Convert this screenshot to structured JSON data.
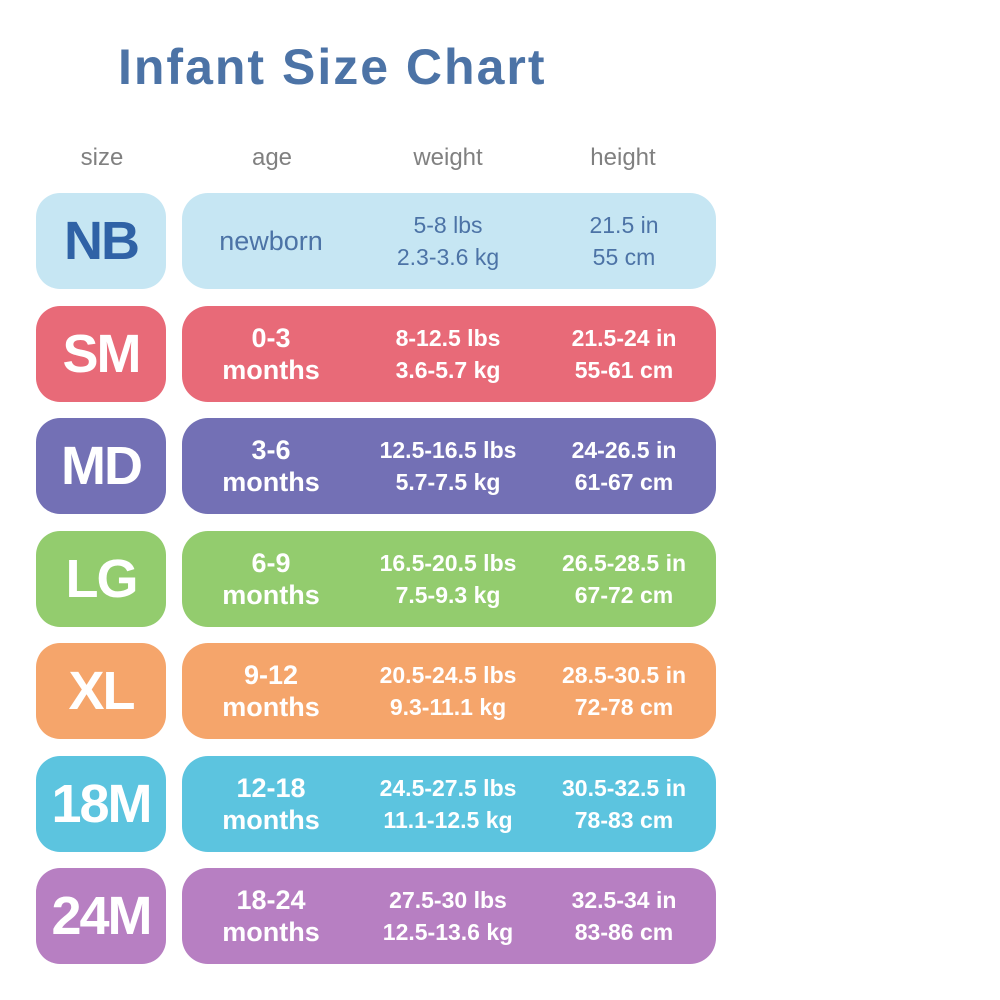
{
  "title": "Infant Size Chart",
  "headers": {
    "size": "size",
    "age": "age",
    "weight": "weight",
    "height": "height"
  },
  "chart_data": {
    "type": "table",
    "title": "Infant Size Chart",
    "columns": [
      "size",
      "age",
      "weight",
      "height"
    ],
    "rows": [
      {
        "size": "NB",
        "age": [
          "newborn"
        ],
        "weight": [
          "5-8 lbs",
          "2.3-3.6 kg"
        ],
        "height": [
          "21.5 in",
          "55 cm"
        ],
        "color": "#c6e6f3",
        "text_color": "#2f62a6"
      },
      {
        "size": "SM",
        "age": [
          "0-3",
          "months"
        ],
        "weight": [
          "8-12.5 lbs",
          "3.6-5.7 kg"
        ],
        "height": [
          "21.5-24 in",
          "55-61 cm"
        ],
        "color": "#e86a78",
        "text_color": "#ffffff"
      },
      {
        "size": "MD",
        "age": [
          "3-6",
          "months"
        ],
        "weight": [
          "12.5-16.5 lbs",
          "5.7-7.5 kg"
        ],
        "height": [
          "24-26.5 in",
          "61-67 cm"
        ],
        "color": "#7370b5",
        "text_color": "#ffffff"
      },
      {
        "size": "LG",
        "age": [
          "6-9",
          "months"
        ],
        "weight": [
          "16.5-20.5 lbs",
          "7.5-9.3 kg"
        ],
        "height": [
          "26.5-28.5 in",
          "67-72 cm"
        ],
        "color": "#93cc6e",
        "text_color": "#ffffff"
      },
      {
        "size": "XL",
        "age": [
          "9-12",
          "months"
        ],
        "weight": [
          "20.5-24.5 lbs",
          "9.3-11.1 kg"
        ],
        "height": [
          "28.5-30.5 in",
          "72-78 cm"
        ],
        "color": "#f5a56b",
        "text_color": "#ffffff"
      },
      {
        "size": "18M",
        "age": [
          "12-18",
          "months"
        ],
        "weight": [
          "24.5-27.5 lbs",
          "11.1-12.5 kg"
        ],
        "height": [
          "30.5-32.5 in",
          "78-83 cm"
        ],
        "color": "#5cc4df",
        "text_color": "#ffffff"
      },
      {
        "size": "24M",
        "age": [
          "18-24",
          "months"
        ],
        "weight": [
          "27.5-30 lbs",
          "12.5-13.6 kg"
        ],
        "height": [
          "32.5-34 in",
          "83-86 cm"
        ],
        "color": "#b77fc2",
        "text_color": "#ffffff"
      }
    ]
  }
}
